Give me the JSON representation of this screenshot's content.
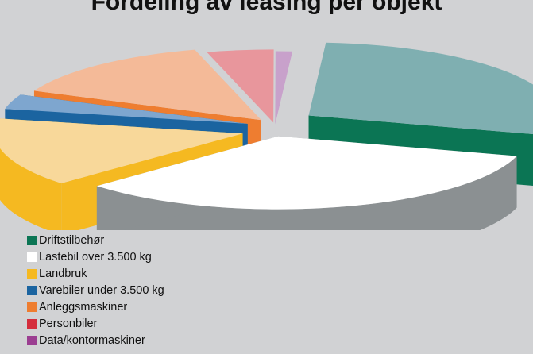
{
  "chart_data": {
    "type": "pie",
    "title": "Fordeling av leasing per objekt",
    "categories": [
      "Driftstilbehør",
      "Lastebil over 3.500 kg",
      "Landbruk",
      "Varebiler under 3.500 kg",
      "Anleggsmaskiner",
      "Personbiler",
      "Data/kontormaskiner"
    ],
    "values": [
      26,
      31,
      14,
      3,
      13,
      4,
      1
    ],
    "colors": {
      "top": [
        "#7fafb1",
        "#ffffff",
        "#f8d89a",
        "#7ea6cf",
        "#f4ba98",
        "#e8969c",
        "#c8a1cb"
      ],
      "side": [
        "#0b7554",
        "#8b9092",
        "#f5b921",
        "#1b64a0",
        "#ee7d30",
        "#d42d3c",
        "#9b3e91"
      ]
    },
    "style": "3d-exploded",
    "legend_position": "bottom-left"
  }
}
